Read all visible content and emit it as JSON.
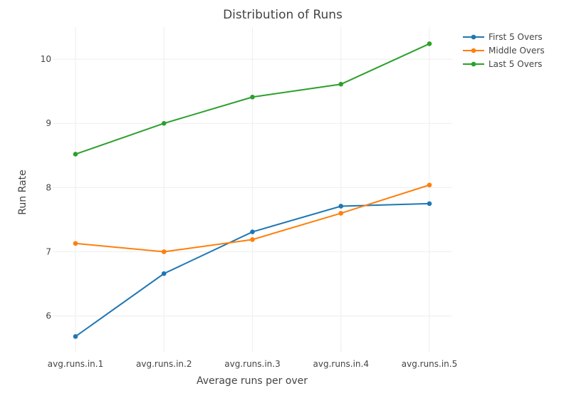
{
  "chart_data": {
    "type": "line",
    "title": "Distribution of Runs",
    "xlabel": "Average runs per over",
    "ylabel": "Run Rate",
    "categories": [
      "avg.runs.in.1",
      "avg.runs.in.2",
      "avg.runs.in.3",
      "avg.runs.in.4",
      "avg.runs.in.5"
    ],
    "ylim": [
      5.43,
      10.5
    ],
    "yticks": [
      6,
      7,
      8,
      9,
      10
    ],
    "grid": true,
    "legend_position": "top-right",
    "series": [
      {
        "name": "First 5 Overs",
        "color": "#1f77b4",
        "values": [
          5.68,
          6.66,
          7.31,
          7.71,
          7.75
        ]
      },
      {
        "name": "Middle Overs",
        "color": "#ff7f0e",
        "values": [
          7.13,
          7.0,
          7.19,
          7.6,
          8.04
        ]
      },
      {
        "name": "Last 5 Overs",
        "color": "#2ca02c",
        "values": [
          8.52,
          9.0,
          9.41,
          9.61,
          10.24
        ]
      }
    ]
  }
}
